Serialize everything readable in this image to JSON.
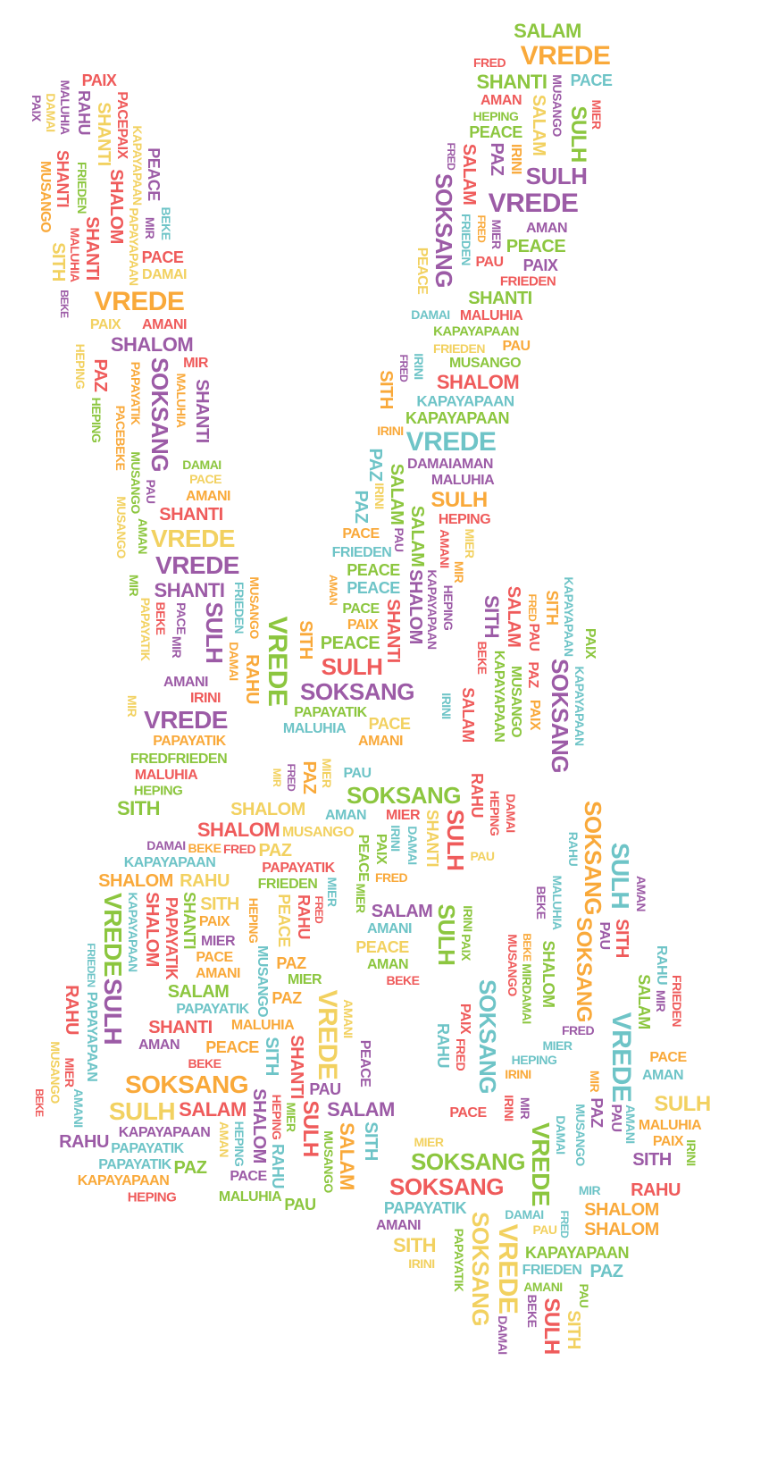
{
  "palette": {
    "r": "#ef5b5b",
    "o": "#f9a93a",
    "y": "#f2d160",
    "g": "#8cc63f",
    "t": "#6ec4c7",
    "p": "#9c5ba6"
  },
  "words": [
    "SALAM",
    "VREDE",
    "FRED",
    "SHANTI",
    "PACE",
    "MUSANGO",
    "MIER",
    "AMAN",
    "SALAM",
    "HEPING",
    "PEACE",
    "SULH",
    "FRED",
    "SALAM",
    "PAZ",
    "IRINI",
    "SULH",
    "SOKSANG",
    "VREDE",
    "FRIEDEN",
    "FRED",
    "MIER",
    "AMAN",
    "PEACE",
    "PAU",
    "PAIX",
    "PEACE",
    "FRIEDEN",
    "SHANTI",
    "DAMAI",
    "MALUHIA",
    "KAPAYAPAAN",
    "FRIEDEN",
    "PAU",
    "FRED",
    "IRINI",
    "MUSANGO",
    "SHALOM",
    "SITH",
    "KAPAYAPAAN",
    "KAPAYAPAAN",
    "IRINI",
    "VREDE",
    "PAZ",
    "DAMAIAMAN",
    "MALUHIA",
    "SULH",
    "IRINI",
    "PAZ",
    "SALAM",
    "SALAM",
    "HEPING",
    "MIER",
    "MIR",
    "AMANI",
    "PAU",
    "PACE",
    "FRIEDEN",
    "PEACE",
    "PEACE",
    "KAPAYAPAAN",
    "HEPING",
    "SHALOM",
    "AMAN",
    "PACE",
    "PAIX",
    "SHANTI",
    "PEACE",
    "SITH",
    "SULH",
    "SOKSANG",
    "PAPAYATIK",
    "MALUHIA",
    "PACE",
    "AMANI",
    "SITH",
    "SALAM",
    "FRED",
    "SITH",
    "KAPAYAPAAN",
    "PAIX",
    "BEKE",
    "KAPAYAPAAN",
    "MUSANGO",
    "PAU",
    "PAZ",
    "PAIX",
    "SOKSANG",
    "KAPAYAPAAN",
    "SALAM",
    "IRINI",
    "PAIX",
    "MALUHIA",
    "RAHU",
    "SHANTI",
    "PACEPAIX",
    "DAMAI",
    "PAIX",
    "KAPAYAPAAN",
    "PEACE",
    "MUSANGO",
    "SHANTI",
    "FRIEDEN",
    "SHALOM",
    "SHANTI",
    "MALUHIA",
    "SITH",
    "PAPAYAPAAN",
    "MIR",
    "BEKE",
    "PACE",
    "DAMAI",
    "VREDE",
    "BEKE",
    "PAIX",
    "AMANI",
    "SHALOM",
    "HEPING",
    "SOKSANG",
    "PAZ",
    "PAPAYATIK",
    "MIR",
    "MALUHIA",
    "SHANTI",
    "HEPING",
    "PACEBEKE",
    "MUSANGO",
    "DAMAI",
    "PACE",
    "PAU",
    "AMANI",
    "SHANTI",
    "AMAN",
    "VREDE",
    "MUSANGO",
    "VREDE",
    "MIR",
    "SHANTI",
    "SULH",
    "PAPAYATIK",
    "BEKE",
    "PACE",
    "FRIEDEN",
    "MUSANGO",
    "VREDE",
    "DAMAI",
    "RAHU",
    "MIR",
    "AMANI",
    "IRINI",
    "MIR",
    "VREDE",
    "PAPAYATIK",
    "FREDFRIEDEN",
    "MALUHIA",
    "HEPING",
    "SITH",
    "MIR",
    "FRED",
    "PAZ",
    "MIER",
    "PAU",
    "SOKSANG",
    "RAHU",
    "DAMAI",
    "HEPING",
    "SHALOM",
    "AMAN",
    "MIER",
    "SHANTI",
    "SULH",
    "SHALOM",
    "MUSANGO",
    "IRINI",
    "DAMAI",
    "PAU",
    "DAMAI",
    "BEKE",
    "FRED",
    "PAZ",
    "PEACE",
    "PAIX",
    "KAPAYAPAAN",
    "PAPAYATIK",
    "FRED",
    "SHALOM",
    "RAHU",
    "FRIEDEN",
    "MIER",
    "MIER",
    "VREDE",
    "KAPAYAPAAN",
    "SHALOM",
    "PAPAYATIK",
    "SHANTI",
    "SITH",
    "HEPING",
    "RAHU",
    "FRED",
    "PEACE",
    "PAIX",
    "MIER",
    "MUSANGO",
    "FRIEDEN",
    "SULH",
    "PACE",
    "AMANI",
    "PAZ",
    "MIER",
    "SALAM",
    "PAPAYATIK",
    "PAZ",
    "VREDE",
    "AMANI",
    "RAHU",
    "PAPAYAPAAN",
    "SHANTI",
    "MALUHIA",
    "PEACE",
    "AMAN",
    "BEKE",
    "SHANTI",
    "SITH",
    "PEACE",
    "SOKSANG",
    "SULH",
    "SALAM",
    "PAU",
    "MUSANGO",
    "MIER",
    "KAPAYAPAAN",
    "SALAM",
    "SHALOM",
    "PAPAYATIK",
    "AMAN",
    "HEPING",
    "MIER",
    "SULH",
    "SALAM",
    "SITH",
    "BEKE",
    "AMANI",
    "PAPAYATIK",
    "RAHU",
    "PAZ",
    "HEPING",
    "RAHU",
    "PACE",
    "MUSANGO",
    "KAPAYAPAAN",
    "HEPING",
    "MALUHIA",
    "PAU",
    "SALAM",
    "AMANI",
    "PEACE",
    "AMAN",
    "BEKE",
    "SULH",
    "PAIX",
    "IRINI",
    "SOKSANG",
    "RAHU",
    "SULH",
    "AMAN",
    "MALUHIA",
    "BEKE",
    "SOKSANG",
    "PAU",
    "SITH",
    "BEKE",
    "MUSANGO",
    "SHALOM",
    "RAHU",
    "MIR",
    "FRIEDEN",
    "SALAM",
    "FRED",
    "MIER",
    "VREDE",
    "PAIX",
    "FRED",
    "SOKSANG",
    "RAHU",
    "HEPING",
    "IRINI",
    "PACE",
    "AMAN",
    "MIR",
    "IRINI",
    "MIR",
    "PAZ",
    "PAU",
    "AMANI",
    "SULH",
    "PACE",
    "MALUHIA",
    "DAMAI",
    "VREDE",
    "MUSANGO",
    "PAIX",
    "IRINI",
    "SITH",
    "MIER",
    "SOKSANG",
    "MIR",
    "RAHU",
    "SOKSANG",
    "PAPAYATIK",
    "SHALOM",
    "SHALOM",
    "DAMAI",
    "PAU",
    "FRED",
    "AMANI",
    "SITH",
    "PAPAYATIK",
    "SOKSANG",
    "VREDE",
    "IRINI",
    "KAPAYAPAAN",
    "FRIEDEN",
    "PAZ",
    "AMANI",
    "PAU",
    "BEKE",
    "SULH",
    "SITH",
    "DAMAI",
    "MIRDAMAI"
  ]
}
